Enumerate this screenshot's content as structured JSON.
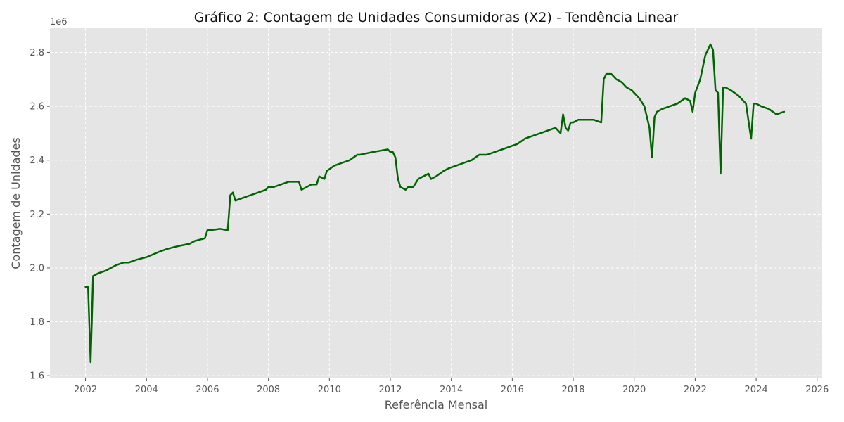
{
  "chart_data": {
    "type": "line",
    "title": "Gráfico 2: Contagem de Unidades Consumidoras (X2) - Tendência Linear",
    "xlabel": "Referência Mensal",
    "ylabel": "Contagem de Unidades",
    "y_offset_label": "1e6",
    "x_axis": "date",
    "xlim": [
      "2000-11-01",
      "2026-03-01"
    ],
    "ylim": [
      1.59,
      2.89
    ],
    "xticks": [
      2002,
      2004,
      2006,
      2008,
      2010,
      2012,
      2014,
      2016,
      2018,
      2020,
      2022,
      2024,
      2026
    ],
    "yticks": [
      1.6,
      1.8,
      2.0,
      2.2,
      2.4,
      2.6,
      2.8
    ],
    "y_unit_scale": 1000000,
    "grid": true,
    "legend": "none",
    "series": [
      {
        "color": "#006400",
        "x": [
          "2002-01",
          "2002-02",
          "2002-03",
          "2002-04",
          "2002-06",
          "2002-09",
          "2002-11",
          "2003-01",
          "2003-04",
          "2003-06",
          "2003-09",
          "2004-01",
          "2004-06",
          "2004-09",
          "2005-01",
          "2005-06",
          "2005-08",
          "2005-12",
          "2006-01",
          "2006-02",
          "2006-06",
          "2006-09",
          "2006-10",
          "2006-11",
          "2006-12",
          "2007-03",
          "2007-06",
          "2007-09",
          "2007-12",
          "2008-01",
          "2008-03",
          "2008-06",
          "2008-09",
          "2009-01",
          "2009-02",
          "2009-06",
          "2009-08",
          "2009-09",
          "2009-11",
          "2009-12",
          "2010-03",
          "2010-06",
          "2010-09",
          "2010-12",
          "2011-01",
          "2011-06",
          "2011-09",
          "2011-12",
          "2012-01",
          "2012-02",
          "2012-03",
          "2012-04",
          "2012-05",
          "2012-07",
          "2012-08",
          "2012-10",
          "2012-12",
          "2013-04",
          "2013-05",
          "2013-07",
          "2013-10",
          "2013-12",
          "2014-03",
          "2014-06",
          "2014-09",
          "2014-12",
          "2015-03",
          "2015-06",
          "2015-09",
          "2015-12",
          "2016-03",
          "2016-06",
          "2016-09",
          "2016-12",
          "2017-03",
          "2017-06",
          "2017-08",
          "2017-09",
          "2017-10",
          "2017-11",
          "2017-12",
          "2018-01",
          "2018-03",
          "2018-06",
          "2018-09",
          "2018-12",
          "2019-01",
          "2019-02",
          "2019-04",
          "2019-06",
          "2019-08",
          "2019-10",
          "2019-12",
          "2020-03",
          "2020-05",
          "2020-07",
          "2020-08",
          "2020-09",
          "2020-10",
          "2020-12",
          "2021-03",
          "2021-06",
          "2021-09",
          "2021-11",
          "2021-12",
          "2022-01",
          "2022-03",
          "2022-05",
          "2022-07",
          "2022-08",
          "2022-09",
          "2022-10",
          "2022-11",
          "2022-12",
          "2023-01",
          "2023-03",
          "2023-06",
          "2023-09",
          "2023-11",
          "2023-12",
          "2024-01",
          "2024-03",
          "2024-06",
          "2024-09",
          "2024-12"
        ],
        "y": [
          1.93,
          1.93,
          1.65,
          1.97,
          1.98,
          1.99,
          2.0,
          2.01,
          2.02,
          2.02,
          2.03,
          2.04,
          2.06,
          2.07,
          2.08,
          2.09,
          2.1,
          2.11,
          2.14,
          2.14,
          2.145,
          2.14,
          2.27,
          2.28,
          2.25,
          2.26,
          2.27,
          2.28,
          2.29,
          2.3,
          2.3,
          2.31,
          2.32,
          2.32,
          2.29,
          2.31,
          2.31,
          2.34,
          2.33,
          2.36,
          2.38,
          2.39,
          2.4,
          2.42,
          2.42,
          2.43,
          2.435,
          2.44,
          2.43,
          2.43,
          2.41,
          2.33,
          2.3,
          2.29,
          2.3,
          2.3,
          2.33,
          2.35,
          2.33,
          2.34,
          2.36,
          2.37,
          2.38,
          2.39,
          2.4,
          2.42,
          2.42,
          2.43,
          2.44,
          2.45,
          2.46,
          2.48,
          2.49,
          2.5,
          2.51,
          2.52,
          2.5,
          2.57,
          2.52,
          2.51,
          2.54,
          2.54,
          2.55,
          2.55,
          2.55,
          2.54,
          2.7,
          2.72,
          2.72,
          2.7,
          2.69,
          2.67,
          2.66,
          2.63,
          2.6,
          2.52,
          2.41,
          2.56,
          2.58,
          2.59,
          2.6,
          2.61,
          2.63,
          2.62,
          2.58,
          2.65,
          2.7,
          2.79,
          2.83,
          2.81,
          2.66,
          2.65,
          2.35,
          2.67,
          2.67,
          2.66,
          2.64,
          2.61,
          2.48,
          2.61,
          2.61,
          2.6,
          2.59,
          2.57,
          2.58
        ]
      }
    ]
  }
}
